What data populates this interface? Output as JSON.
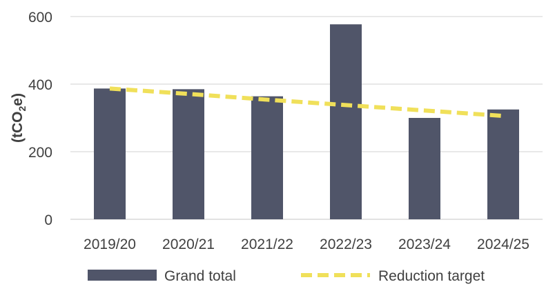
{
  "chart_data": {
    "type": "bar",
    "categories": [
      "2019/20",
      "2020/21",
      "2021/22",
      "2022/23",
      "2023/24",
      "2024/25"
    ],
    "series": [
      {
        "name": "Grand total",
        "type": "bar",
        "color": "#505569",
        "values": [
          387,
          385,
          364,
          577,
          300,
          325
        ]
      },
      {
        "name": "Reduction target",
        "type": "line",
        "style": "dashed",
        "color": "#f0e05a",
        "values": [
          387,
          371,
          354,
          338,
          322,
          306
        ]
      }
    ],
    "ylabel": {
      "prefix": "(tCO",
      "subscript": "2",
      "suffix": "e)"
    },
    "ylim": [
      0,
      600
    ],
    "yticks": [
      0,
      200,
      400,
      600
    ],
    "grid": true,
    "legend": "bottom"
  }
}
